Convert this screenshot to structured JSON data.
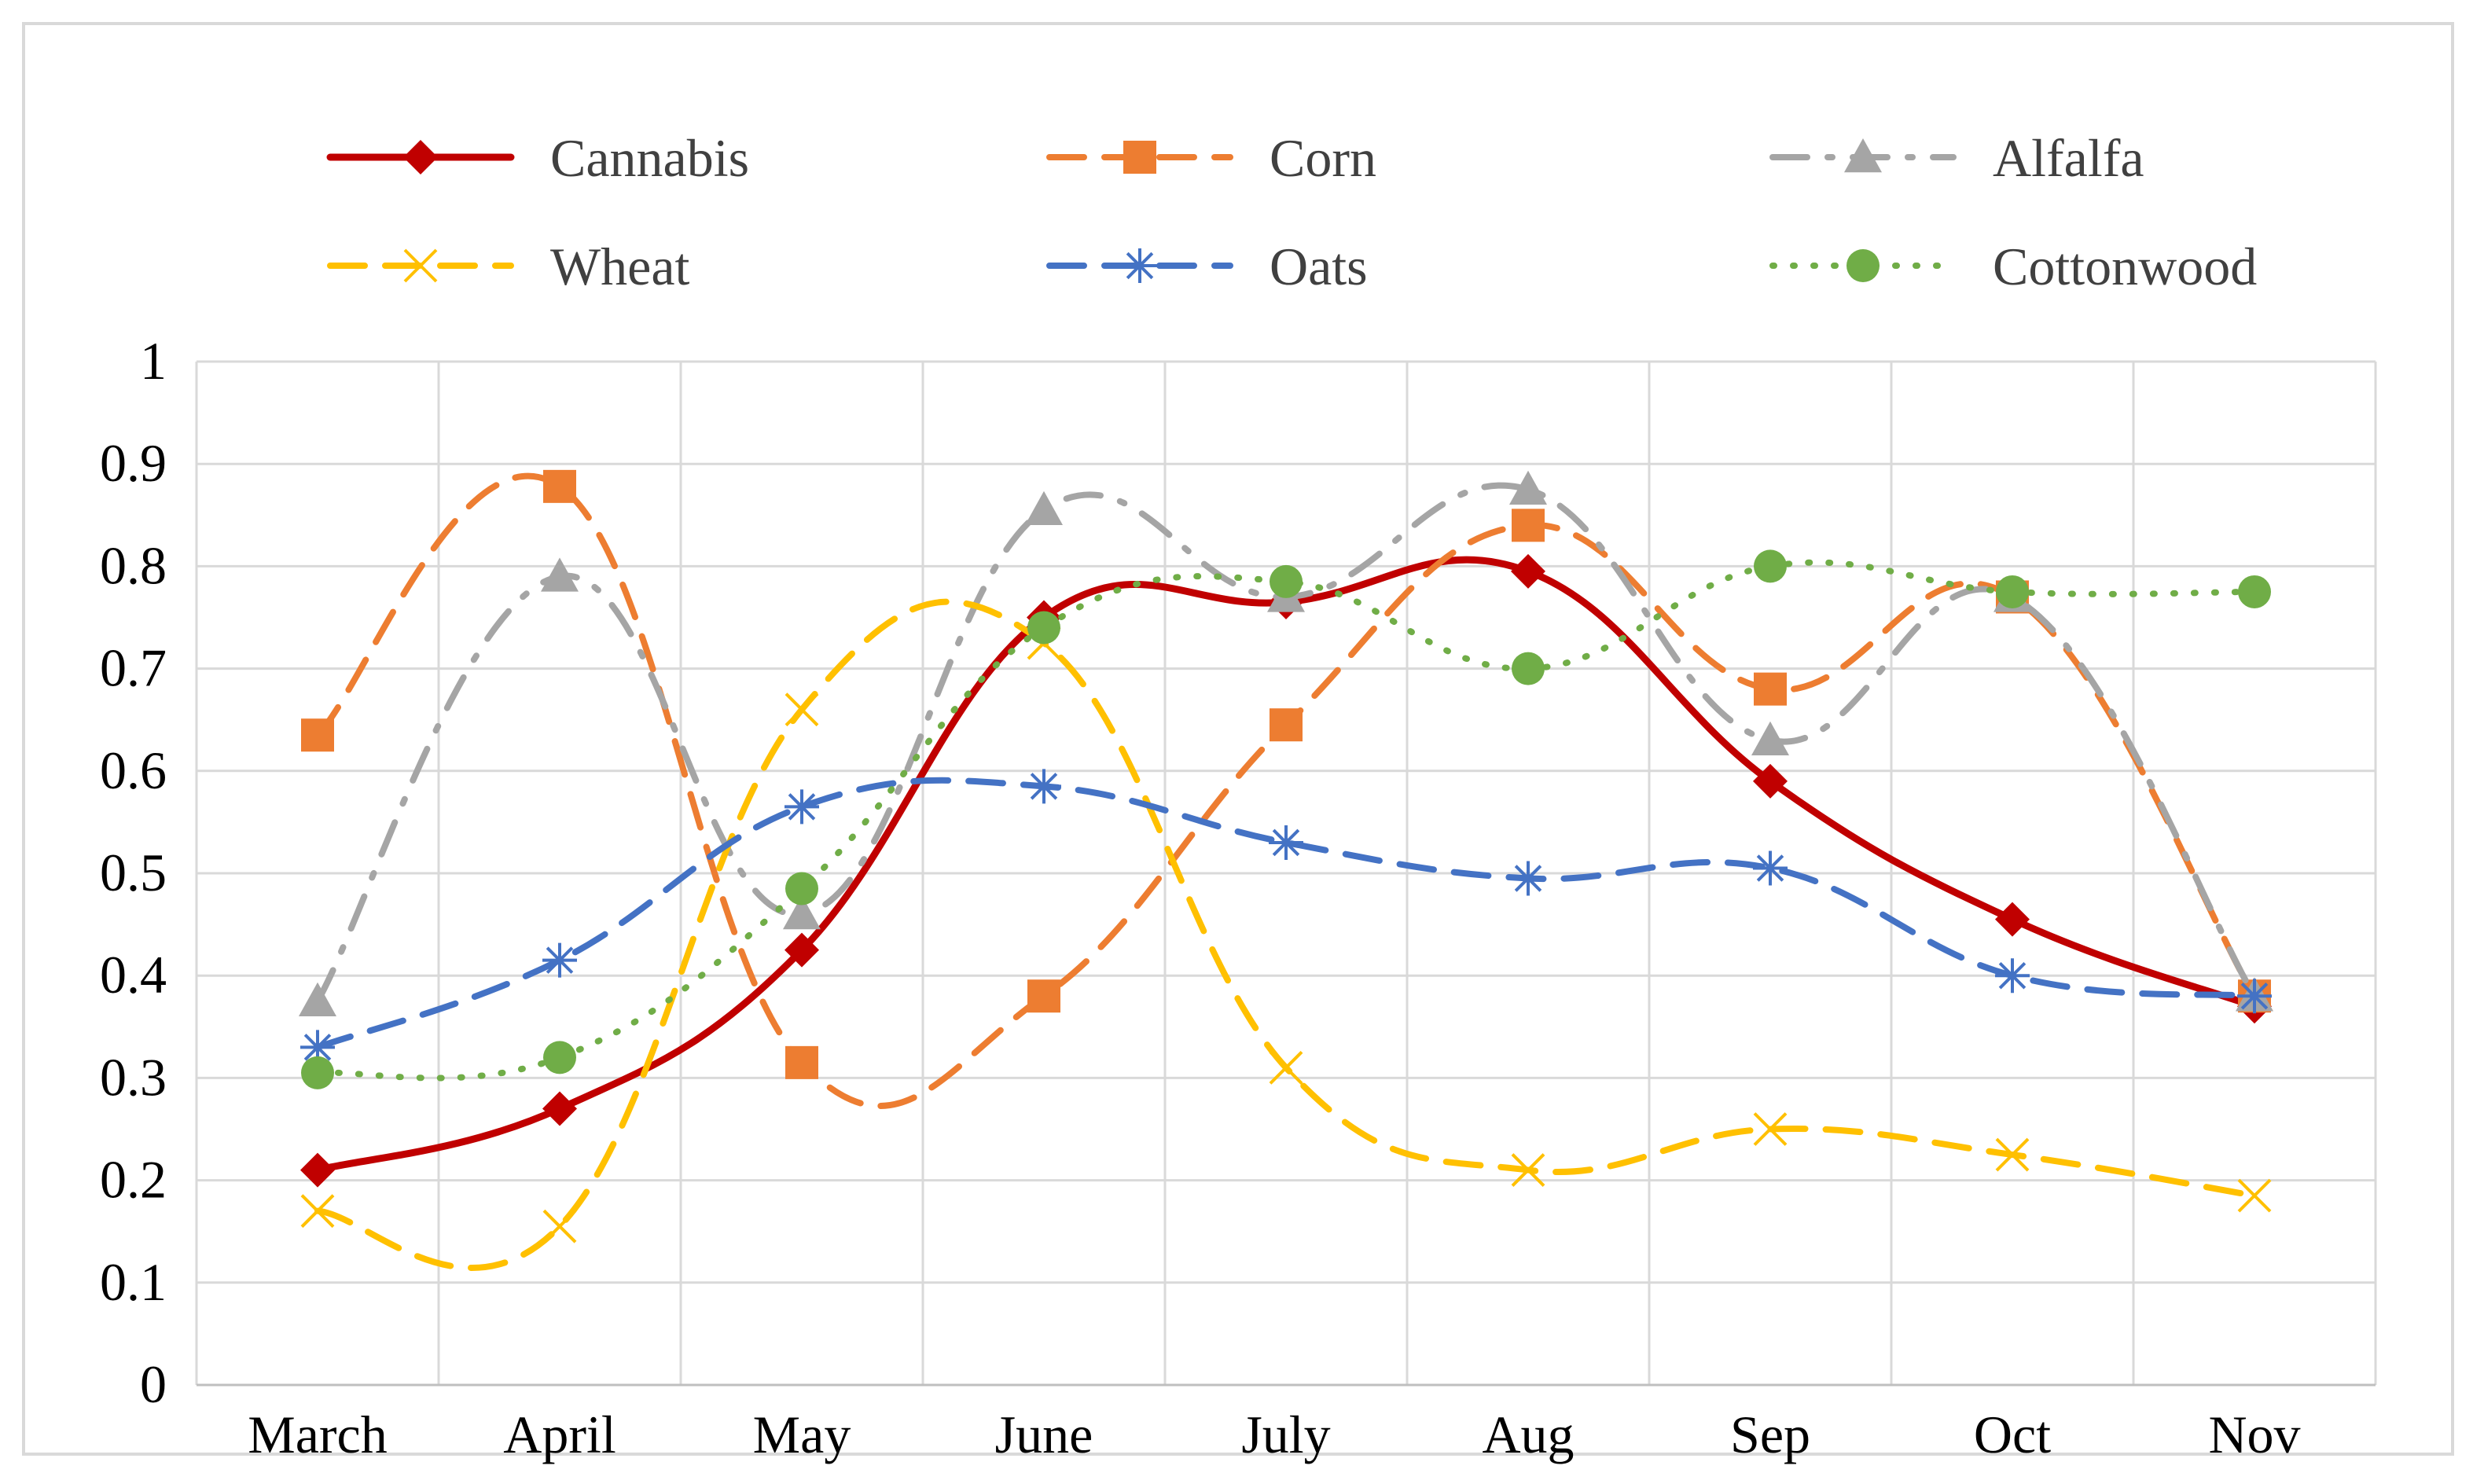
{
  "chart_data": {
    "type": "line",
    "title": "",
    "xlabel": "",
    "ylabel": "",
    "categories": [
      "March",
      "April",
      "May",
      "June",
      "July",
      "Aug",
      "Sep",
      "Oct",
      "Nov"
    ],
    "ylim": [
      0,
      1
    ],
    "yticks": [
      "0",
      "0.1",
      "0.2",
      "0.3",
      "0.4",
      "0.5",
      "0.6",
      "0.7",
      "0.8",
      "0.9",
      "1"
    ],
    "grid": true,
    "legend_position": "top",
    "series": [
      {
        "name": "Cannabis",
        "values": [
          0.21,
          0.27,
          0.425,
          0.75,
          0.765,
          0.795,
          0.59,
          0.455,
          0.37
        ],
        "color": "#C00000",
        "dash": "solid",
        "marker": "diamond"
      },
      {
        "name": "Corn",
        "values": [
          0.635,
          0.878,
          0.315,
          0.38,
          0.645,
          0.84,
          0.68,
          0.77,
          0.38
        ],
        "color": "#ED7D31",
        "dash": "dash",
        "marker": "square"
      },
      {
        "name": "Alfalfa",
        "values": [
          0.375,
          0.79,
          0.46,
          0.855,
          0.77,
          0.875,
          0.63,
          0.77,
          0.38
        ],
        "color": "#A5A5A5",
        "dash": "dashdot",
        "marker": "triangle"
      },
      {
        "name": "Wheat",
        "values": [
          0.17,
          0.155,
          0.66,
          0.725,
          0.31,
          0.21,
          0.25,
          0.225,
          0.185
        ],
        "color": "#FFC000",
        "dash": "dash",
        "marker": "x"
      },
      {
        "name": "Oats",
        "values": [
          0.33,
          0.415,
          0.565,
          0.585,
          0.53,
          0.495,
          0.505,
          0.4,
          0.38
        ],
        "color": "#4472C4",
        "dash": "dash",
        "marker": "star"
      },
      {
        "name": "Cottonwood",
        "values": [
          0.305,
          0.32,
          0.485,
          0.74,
          0.785,
          0.7,
          0.8,
          0.775,
          0.775
        ],
        "color": "#70AD47",
        "dash": "dot",
        "marker": "circle"
      }
    ]
  }
}
